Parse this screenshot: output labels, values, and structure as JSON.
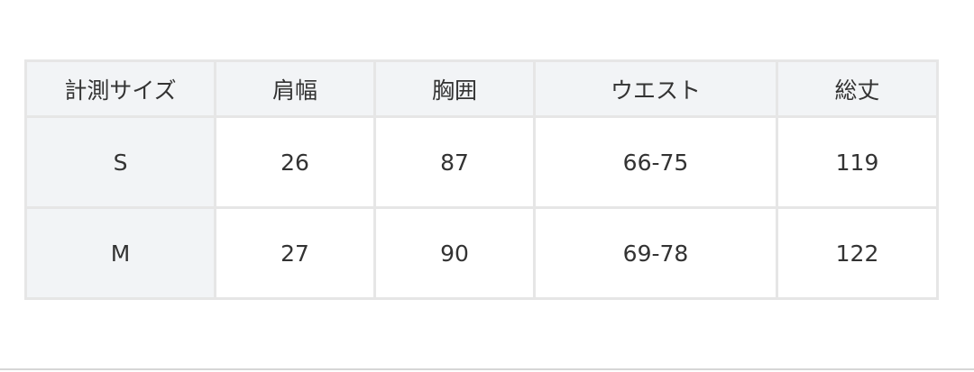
{
  "table": {
    "headers": [
      "計測サイズ",
      "肩幅",
      "胸囲",
      "ウエスト",
      "総丈"
    ],
    "rows": [
      [
        "S",
        "26",
        "87",
        "66-75",
        "119"
      ],
      [
        "M",
        "27",
        "90",
        "69-78",
        "122"
      ]
    ]
  }
}
